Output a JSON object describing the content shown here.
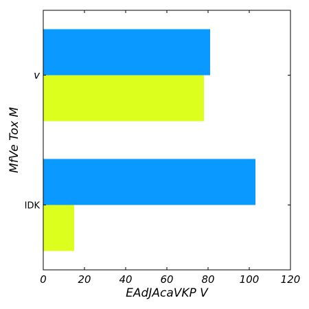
{
  "chart_data": {
    "type": "bar",
    "orientation": "horizontal",
    "categories": [
      "IDK",
      "v"
    ],
    "series": [
      {
        "color": "#dcff1e",
        "values": [
          15,
          78
        ]
      },
      {
        "color": "#0a99ff",
        "values": [
          103,
          81
        ]
      }
    ],
    "xlabel": "EAdJAcaVKP  V",
    "ylabel": "MfVe  Tox  M",
    "xlim": [
      0,
      120
    ],
    "xticks": [
      0,
      20,
      40,
      60,
      80,
      100,
      120
    ],
    "grid": false,
    "legend": "none"
  }
}
